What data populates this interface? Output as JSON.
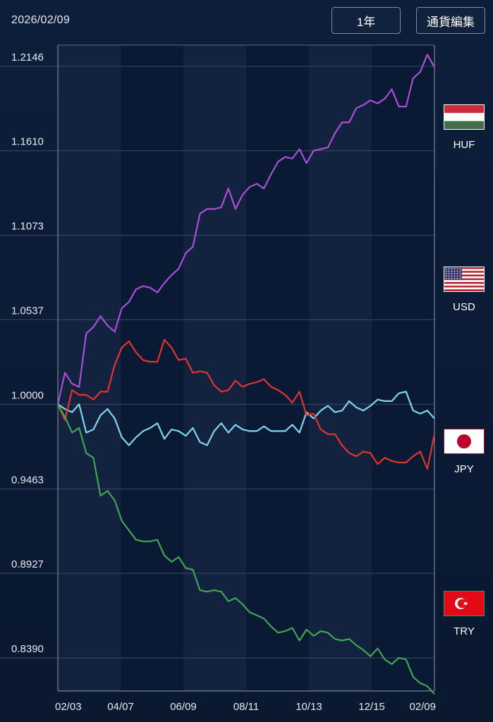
{
  "header": {
    "date": "2026/02/09",
    "period_label": "1年",
    "edit_label": "通貨編集"
  },
  "currencies": [
    {
      "code": "HUF",
      "flag": "hungary-flag-icon"
    },
    {
      "code": "USD",
      "flag": "us-flag-icon"
    },
    {
      "code": "JPY",
      "flag": "japan-flag-icon"
    },
    {
      "code": "TRY",
      "flag": "turkey-flag-icon"
    }
  ],
  "chart_data": {
    "type": "line",
    "title": "",
    "xlabel": "",
    "ylabel": "",
    "x_ticks": [
      "02/03",
      "04/07",
      "06/09",
      "08/11",
      "10/13",
      "12/15",
      "02/09"
    ],
    "y_ticks": [
      "1.2146",
      "1.1610",
      "1.1073",
      "1.0537",
      "1.0000",
      "0.9463",
      "0.8927",
      "0.8390"
    ],
    "ylim": [
      0.818,
      1.228
    ],
    "grid": true,
    "series": [
      {
        "name": "HUF",
        "color": "#a94fd6",
        "values": [
          1.0,
          1.02,
          1.013,
          1.011,
          1.045,
          1.049,
          1.056,
          1.05,
          1.046,
          1.061,
          1.065,
          1.073,
          1.075,
          1.074,
          1.071,
          1.077,
          1.082,
          1.086,
          1.096,
          1.1,
          1.121,
          1.124,
          1.124,
          1.125,
          1.137,
          1.124,
          1.133,
          1.138,
          1.14,
          1.137,
          1.146,
          1.154,
          1.157,
          1.156,
          1.162,
          1.153,
          1.161,
          1.162,
          1.163,
          1.172,
          1.179,
          1.179,
          1.188,
          1.19,
          1.193,
          1.191,
          1.194,
          1.2,
          1.189,
          1.189,
          1.207,
          1.211,
          1.222,
          1.214
        ]
      },
      {
        "name": "USD",
        "color": "#7ed6ee",
        "values": [
          1.0,
          0.997,
          0.995,
          1.0,
          0.982,
          0.984,
          0.993,
          0.997,
          0.991,
          0.979,
          0.974,
          0.979,
          0.983,
          0.985,
          0.988,
          0.978,
          0.984,
          0.983,
          0.98,
          0.985,
          0.976,
          0.974,
          0.983,
          0.988,
          0.982,
          0.987,
          0.984,
          0.983,
          0.983,
          0.986,
          0.983,
          0.983,
          0.983,
          0.987,
          0.982,
          0.995,
          0.991,
          0.996,
          0.999,
          0.995,
          0.996,
          1.002,
          0.998,
          0.996,
          0.999,
          1.003,
          1.002,
          1.002,
          1.007,
          1.008,
          0.996,
          0.994,
          0.996,
          0.991
        ]
      },
      {
        "name": "JPY",
        "color": "#e0352f",
        "values": [
          1.0,
          0.99,
          1.009,
          1.006,
          1.006,
          1.003,
          1.008,
          1.008,
          1.025,
          1.036,
          1.04,
          1.033,
          1.028,
          1.027,
          1.027,
          1.041,
          1.036,
          1.028,
          1.029,
          1.02,
          1.021,
          1.02,
          1.012,
          1.008,
          1.009,
          1.015,
          1.011,
          1.013,
          1.014,
          1.016,
          1.011,
          1.009,
          1.006,
          1.001,
          1.008,
          0.993,
          0.994,
          0.984,
          0.981,
          0.981,
          0.974,
          0.969,
          0.967,
          0.97,
          0.969,
          0.962,
          0.966,
          0.964,
          0.963,
          0.963,
          0.967,
          0.97,
          0.959,
          0.981
        ]
      },
      {
        "name": "TRY",
        "color": "#3fa454",
        "values": [
          1.0,
          0.992,
          0.982,
          0.985,
          0.969,
          0.966,
          0.942,
          0.945,
          0.939,
          0.926,
          0.92,
          0.914,
          0.913,
          0.913,
          0.914,
          0.904,
          0.9,
          0.903,
          0.896,
          0.895,
          0.882,
          0.881,
          0.882,
          0.881,
          0.875,
          0.877,
          0.873,
          0.868,
          0.866,
          0.864,
          0.859,
          0.855,
          0.856,
          0.858,
          0.85,
          0.857,
          0.853,
          0.856,
          0.855,
          0.851,
          0.85,
          0.851,
          0.847,
          0.844,
          0.84,
          0.845,
          0.838,
          0.835,
          0.839,
          0.838,
          0.827,
          0.823,
          0.821,
          0.816
        ]
      }
    ]
  }
}
